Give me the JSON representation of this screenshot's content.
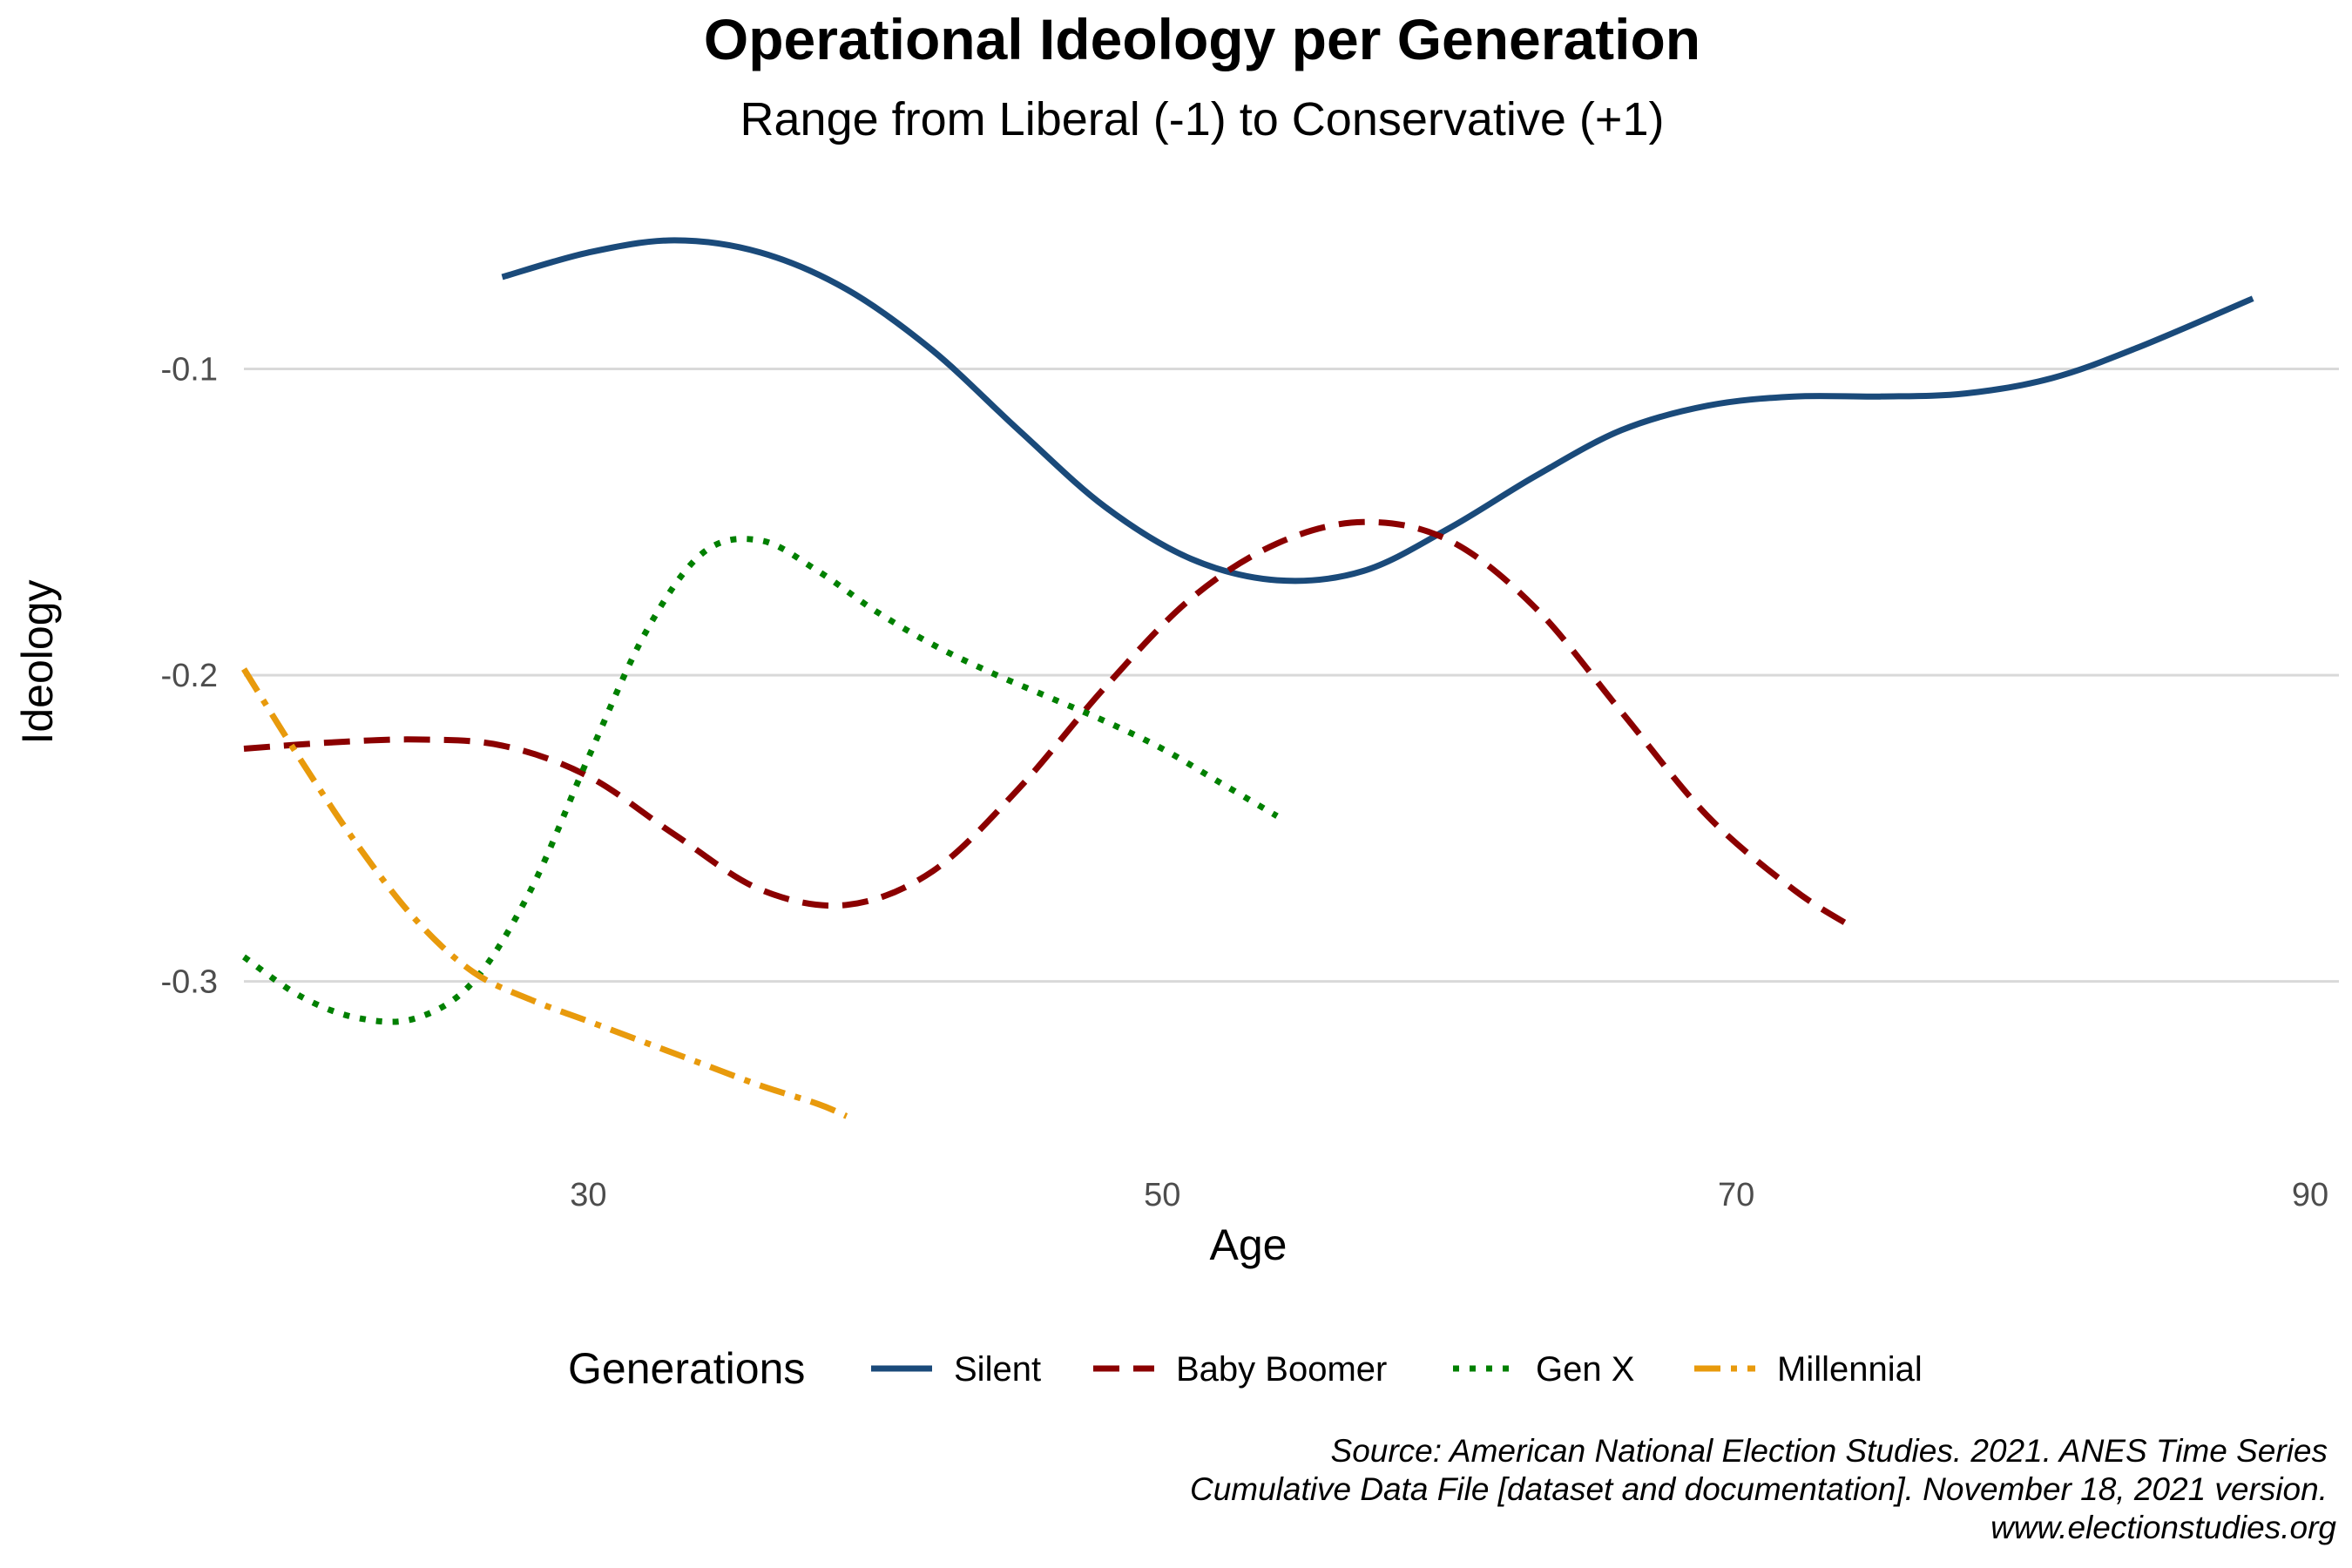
{
  "chart_data": {
    "type": "line",
    "title": "Operational Ideology per Generation",
    "subtitle": "Range from Liberal (-1) to Conservative (+1)",
    "xlabel": "Age",
    "ylabel": "Ideology",
    "xlim": [
      18,
      91
    ],
    "ylim": [
      -0.355,
      -0.035
    ],
    "xticks": [
      30,
      50,
      70,
      90
    ],
    "yticks": [
      -0.1,
      -0.2,
      -0.3
    ],
    "xtick_labels": [
      "30",
      "50",
      "70",
      "90"
    ],
    "ytick_labels": [
      "-0.1",
      "-0.2",
      "-0.3"
    ],
    "grid": true,
    "legend": {
      "title": "Generations",
      "position": "bottom"
    },
    "series": [
      {
        "name": "Silent",
        "color": "#1a4a7a",
        "dash": "solid",
        "x": [
          27,
          30,
          33,
          36,
          39,
          42,
          45,
          48,
          51,
          54,
          57,
          60,
          63,
          66,
          69,
          72,
          75,
          78,
          81,
          84,
          88
        ],
        "y": [
          -0.07,
          -0.062,
          -0.058,
          -0.062,
          -0.074,
          -0.094,
          -0.12,
          -0.145,
          -0.162,
          -0.169,
          -0.166,
          -0.152,
          -0.135,
          -0.12,
          -0.112,
          -0.109,
          -0.109,
          -0.108,
          -0.103,
          -0.093,
          -0.077
        ]
      },
      {
        "name": "Baby Boomer",
        "color": "#8b0000",
        "dash": "dashed",
        "x": [
          18,
          21,
          24,
          27,
          30,
          33,
          36,
          39,
          42,
          45,
          48,
          51,
          54,
          57,
          60,
          63,
          66,
          69,
          72,
          74
        ],
        "y": [
          -0.224,
          -0.222,
          -0.221,
          -0.223,
          -0.233,
          -0.252,
          -0.27,
          -0.275,
          -0.264,
          -0.237,
          -0.204,
          -0.175,
          -0.157,
          -0.15,
          -0.156,
          -0.178,
          -0.212,
          -0.246,
          -0.27,
          -0.282
        ]
      },
      {
        "name": "Gen X",
        "color": "#008000",
        "dash": "dotted",
        "x": [
          18,
          20,
          22,
          24,
          26,
          28,
          30,
          32,
          34,
          36,
          38,
          40,
          42,
          44,
          46,
          48,
          50,
          52,
          54
        ],
        "y": [
          -0.292,
          -0.305,
          -0.312,
          -0.312,
          -0.3,
          -0.27,
          -0.227,
          -0.186,
          -0.16,
          -0.156,
          -0.166,
          -0.179,
          -0.19,
          -0.199,
          -0.207,
          -0.215,
          -0.224,
          -0.235,
          -0.246
        ]
      },
      {
        "name": "Millennial",
        "color": "#e89a0c",
        "dash": "dotdash",
        "x": [
          18,
          20,
          22,
          24,
          26,
          28,
          30,
          32,
          34,
          36,
          38,
          39
        ],
        "y": [
          -0.198,
          -0.228,
          -0.256,
          -0.28,
          -0.297,
          -0.306,
          -0.313,
          -0.32,
          -0.327,
          -0.334,
          -0.34,
          -0.344
        ]
      }
    ]
  },
  "caption": {
    "line1": "Source: American National Election Studies. 2021. ANES Time Series",
    "line2": "Cumulative Data File [dataset and documentation]. November 18, 2021 version.",
    "line3": "www.electionstudies.org"
  }
}
